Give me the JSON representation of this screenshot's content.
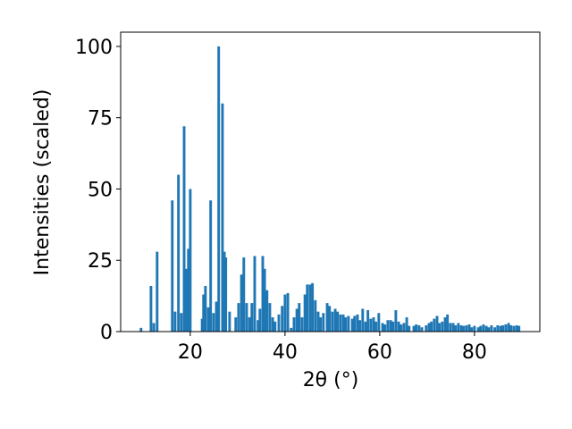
{
  "chart_data": {
    "type": "bar",
    "x_label": "2θ (°)",
    "y_label": "Intensities (scaled)",
    "color": "#1f77b4",
    "grid": false,
    "xlim": [
      5.3,
      93.8
    ],
    "ylim": [
      0,
      105
    ],
    "xticks": [
      20,
      40,
      60,
      80
    ],
    "yticks": [
      0,
      25,
      50,
      75,
      100
    ],
    "x": [
      9.6,
      11.7,
      12.3,
      13.0,
      16.2,
      16.8,
      17.5,
      18.1,
      18.7,
      19.2,
      19.6,
      20.0,
      22.5,
      22.8,
      23.2,
      23.8,
      24.3,
      24.9,
      25.5,
      26.0,
      26.8,
      27.2,
      27.5,
      28.3,
      29.6,
      30.2,
      30.8,
      31.3,
      31.9,
      32.5,
      33.0,
      33.6,
      34.3,
      34.7,
      35.3,
      35.7,
      36.2,
      36.8,
      37.4,
      37.9,
      38.7,
      39.4,
      40.0,
      40.6,
      41.3,
      41.9,
      42.5,
      43.0,
      43.6,
      44.2,
      44.7,
      45.3,
      45.8,
      46.4,
      47.0,
      47.5,
      48.1,
      48.9,
      49.4,
      50.0,
      50.6,
      51.1,
      51.7,
      52.3,
      52.8,
      53.4,
      54.2,
      54.7,
      55.3,
      55.8,
      56.4,
      57.0,
      57.5,
      58.1,
      58.7,
      59.2,
      59.8,
      60.6,
      61.1,
      61.7,
      62.3,
      62.8,
      63.4,
      64.0,
      64.5,
      65.1,
      65.7,
      66.2,
      67.2,
      67.7,
      68.3,
      68.9,
      69.8,
      70.4,
      70.9,
      71.5,
      72.1,
      72.6,
      73.2,
      73.8,
      74.3,
      74.9,
      75.5,
      76.0,
      76.6,
      77.2,
      77.7,
      78.3,
      78.9,
      79.4,
      80.0,
      80.8,
      81.3,
      81.9,
      82.5,
      83.0,
      83.6,
      84.3,
      84.9,
      85.5,
      86.0,
      86.6,
      87.2,
      87.7,
      88.3,
      88.9,
      89.4
    ],
    "values": [
      1.3,
      16,
      3,
      28,
      46,
      7,
      55,
      6.5,
      72,
      22,
      29,
      50,
      4.5,
      13,
      16,
      8.5,
      46,
      6.5,
      10.5,
      100,
      80,
      28,
      26,
      7,
      5,
      10,
      20,
      26,
      10,
      5,
      10,
      26.5,
      4,
      8,
      26.5,
      22,
      14.5,
      10,
      5,
      3.5,
      6,
      9,
      13,
      13.5,
      1.3,
      5,
      8,
      10,
      5,
      13,
      16.5,
      16.5,
      17,
      11,
      7,
      5,
      6.5,
      10,
      9,
      7,
      8,
      7,
      6,
      6,
      5,
      5.5,
      4.5,
      5.5,
      6,
      4,
      8,
      3.5,
      7.5,
      4.5,
      5,
      3.5,
      6.5,
      3,
      2.5,
      4,
      4,
      3.5,
      7.5,
      3.5,
      2.5,
      3,
      5,
      2,
      2,
      2.5,
      2.2,
      1.5,
      2.2,
      3,
      3.5,
      4.5,
      5.5,
      3,
      3.5,
      5,
      6,
      3,
      3,
      2.2,
      3,
      2.2,
      2,
      2.2,
      2.5,
      1.5,
      2,
      1.5,
      2,
      2.5,
      2,
      1.5,
      2.2,
      1.5,
      2.2,
      2,
      2.2,
      2.5,
      3,
      2.2,
      2,
      2.2,
      2
    ]
  }
}
